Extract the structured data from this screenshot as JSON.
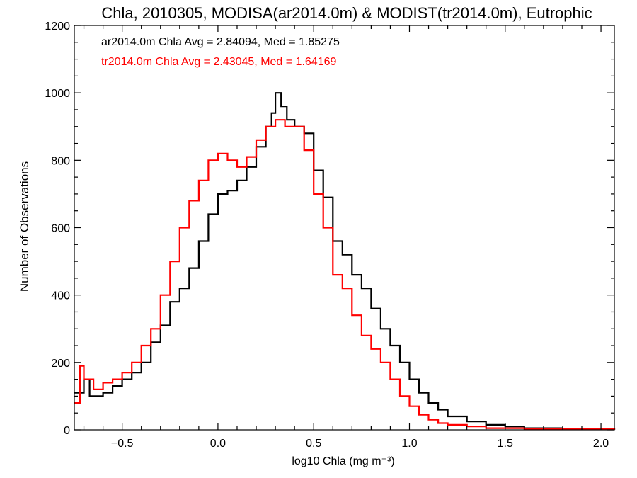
{
  "chart_data": {
    "type": "line",
    "step": true,
    "title": "Chla, 2010305, MODISA(ar2014.0m) & MODIST(tr2014.0m), Eutrophic",
    "xlabel": "log10 Chla (mg m⁻³)",
    "ylabel": "Number of Observations",
    "xlim": [
      -0.75,
      2.07
    ],
    "ylim": [
      0,
      1200
    ],
    "xticks": [
      -0.5,
      0.0,
      0.5,
      1.0,
      1.5,
      2.0
    ],
    "xtick_labels": [
      "−0.5",
      "0.0",
      "0.5",
      "1.0",
      "1.5",
      "2.0"
    ],
    "yticks": [
      0,
      200,
      400,
      600,
      800,
      1000,
      1200
    ],
    "ytick_labels": [
      "0",
      "200",
      "400",
      "600",
      "800",
      "1000",
      "1200"
    ],
    "grid": false,
    "annotations": [
      {
        "text": "ar2014.0m Chla Avg = 2.84094, Med = 1.85275",
        "color": "#000000"
      },
      {
        "text": "tr2014.0m Chla Avg = 2.43045, Med = 1.64169",
        "color": "#ff0000"
      }
    ],
    "series": [
      {
        "color": "#000000",
        "points": [
          [
            -0.75,
            110
          ],
          [
            -0.7,
            150
          ],
          [
            -0.67,
            100
          ],
          [
            -0.6,
            110
          ],
          [
            -0.55,
            130
          ],
          [
            -0.5,
            150
          ],
          [
            -0.45,
            170
          ],
          [
            -0.4,
            200
          ],
          [
            -0.35,
            260
          ],
          [
            -0.3,
            310
          ],
          [
            -0.25,
            380
          ],
          [
            -0.2,
            420
          ],
          [
            -0.15,
            480
          ],
          [
            -0.1,
            560
          ],
          [
            -0.05,
            640
          ],
          [
            0.0,
            700
          ],
          [
            0.05,
            710
          ],
          [
            0.1,
            740
          ],
          [
            0.15,
            780
          ],
          [
            0.2,
            840
          ],
          [
            0.25,
            900
          ],
          [
            0.28,
            940
          ],
          [
            0.3,
            1000
          ],
          [
            0.33,
            960
          ],
          [
            0.36,
            920
          ],
          [
            0.4,
            900
          ],
          [
            0.45,
            880
          ],
          [
            0.5,
            770
          ],
          [
            0.55,
            690
          ],
          [
            0.6,
            560
          ],
          [
            0.65,
            520
          ],
          [
            0.7,
            460
          ],
          [
            0.75,
            420
          ],
          [
            0.8,
            360
          ],
          [
            0.85,
            300
          ],
          [
            0.9,
            250
          ],
          [
            0.95,
            200
          ],
          [
            1.0,
            150
          ],
          [
            1.05,
            110
          ],
          [
            1.1,
            80
          ],
          [
            1.15,
            60
          ],
          [
            1.2,
            40
          ],
          [
            1.3,
            25
          ],
          [
            1.4,
            15
          ],
          [
            1.5,
            10
          ],
          [
            1.6,
            5
          ],
          [
            1.8,
            3
          ],
          [
            2.07,
            0
          ]
        ]
      },
      {
        "color": "#ff0000",
        "points": [
          [
            -0.75,
            80
          ],
          [
            -0.72,
            190
          ],
          [
            -0.7,
            150
          ],
          [
            -0.65,
            120
          ],
          [
            -0.6,
            140
          ],
          [
            -0.55,
            150
          ],
          [
            -0.5,
            170
          ],
          [
            -0.45,
            200
          ],
          [
            -0.4,
            250
          ],
          [
            -0.35,
            300
          ],
          [
            -0.3,
            400
          ],
          [
            -0.25,
            500
          ],
          [
            -0.2,
            600
          ],
          [
            -0.15,
            680
          ],
          [
            -0.1,
            740
          ],
          [
            -0.05,
            800
          ],
          [
            0.0,
            820
          ],
          [
            0.05,
            800
          ],
          [
            0.1,
            780
          ],
          [
            0.15,
            810
          ],
          [
            0.2,
            860
          ],
          [
            0.25,
            900
          ],
          [
            0.3,
            920
          ],
          [
            0.35,
            900
          ],
          [
            0.4,
            900
          ],
          [
            0.45,
            830
          ],
          [
            0.5,
            700
          ],
          [
            0.55,
            600
          ],
          [
            0.6,
            460
          ],
          [
            0.65,
            420
          ],
          [
            0.7,
            340
          ],
          [
            0.75,
            280
          ],
          [
            0.8,
            240
          ],
          [
            0.85,
            200
          ],
          [
            0.9,
            150
          ],
          [
            0.95,
            100
          ],
          [
            1.0,
            70
          ],
          [
            1.05,
            45
          ],
          [
            1.1,
            30
          ],
          [
            1.15,
            20
          ],
          [
            1.2,
            15
          ],
          [
            1.3,
            10
          ],
          [
            1.4,
            5
          ],
          [
            1.6,
            3
          ],
          [
            2.07,
            0
          ]
        ]
      }
    ]
  }
}
